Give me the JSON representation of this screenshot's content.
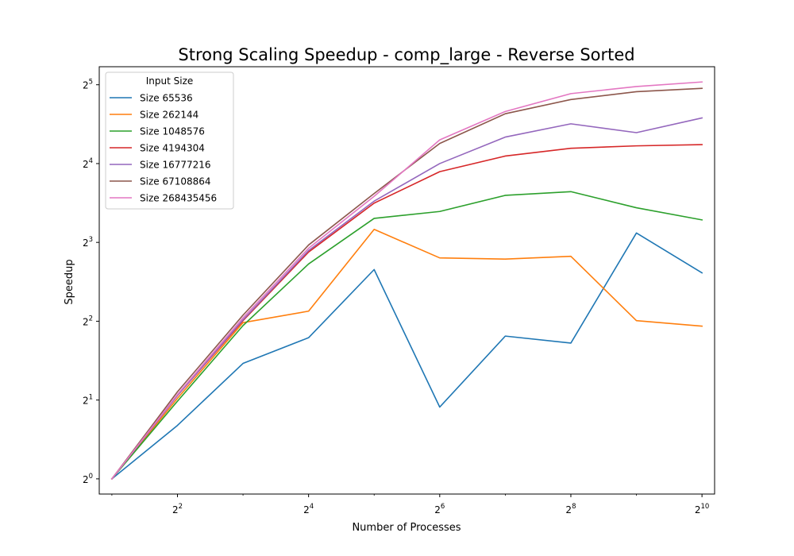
{
  "chart_data": {
    "type": "line",
    "title": "Strong Scaling Speedup - comp_large - Reverse Sorted",
    "xlabel": "Number of Processes",
    "ylabel": "Speedup",
    "xscale": "log2",
    "yscale": "log2",
    "xlim": [
      1.75,
      1170
    ],
    "ylim": [
      0.875,
      37.5
    ],
    "x": [
      2,
      4,
      8,
      16,
      32,
      64,
      128,
      256,
      512,
      1024
    ],
    "x_ticks": [
      {
        "value": 4,
        "base": "2",
        "exp": "2"
      },
      {
        "value": 16,
        "base": "2",
        "exp": "4"
      },
      {
        "value": 64,
        "base": "2",
        "exp": "6"
      },
      {
        "value": 256,
        "base": "2",
        "exp": "8"
      },
      {
        "value": 1024,
        "base": "2",
        "exp": "10"
      }
    ],
    "y_ticks": [
      {
        "value": 1,
        "base": "2",
        "exp": "0"
      },
      {
        "value": 2,
        "base": "2",
        "exp": "1"
      },
      {
        "value": 4,
        "base": "2",
        "exp": "2"
      },
      {
        "value": 8,
        "base": "2",
        "exp": "3"
      },
      {
        "value": 16,
        "base": "2",
        "exp": "4"
      },
      {
        "value": 32,
        "base": "2",
        "exp": "5"
      }
    ],
    "legend": {
      "title": "Input Size",
      "placement": "top-left"
    },
    "grid": false,
    "series": [
      {
        "name": "Size 65536",
        "color": "#1f77b4",
        "values": [
          1,
          1.6,
          2.76,
          3.46,
          6.3,
          1.88,
          3.51,
          3.3,
          8.69,
          6.12
        ]
      },
      {
        "name": "Size 262144",
        "color": "#ff7f0e",
        "values": [
          1,
          2.03,
          3.95,
          4.37,
          8.97,
          6.98,
          6.91,
          7.08,
          4.02,
          3.83
        ]
      },
      {
        "name": "Size 1048576",
        "color": "#2ca02c",
        "values": [
          1,
          1.98,
          3.85,
          6.62,
          9.88,
          10.5,
          12.1,
          12.5,
          10.85,
          9.75
        ]
      },
      {
        "name": "Size 4194304",
        "color": "#d62728",
        "values": [
          1,
          2.08,
          4.02,
          7.35,
          11.3,
          14.9,
          17.1,
          18.3,
          18.7,
          18.9
        ]
      },
      {
        "name": "Size 16777216",
        "color": "#9467bd",
        "values": [
          1,
          2.08,
          4.05,
          7.45,
          11.5,
          16.0,
          20.2,
          22.7,
          21.0,
          23.9
        ]
      },
      {
        "name": "Size 67108864",
        "color": "#8c564b",
        "values": [
          1,
          2.15,
          4.22,
          7.82,
          12.3,
          19.1,
          24.8,
          28.1,
          30.1,
          31.0
        ]
      },
      {
        "name": "Size 268435456",
        "color": "#e377c2",
        "values": [
          1,
          2.1,
          4.12,
          7.6,
          12.0,
          19.7,
          25.3,
          29.6,
          31.5,
          32.8
        ]
      }
    ]
  }
}
